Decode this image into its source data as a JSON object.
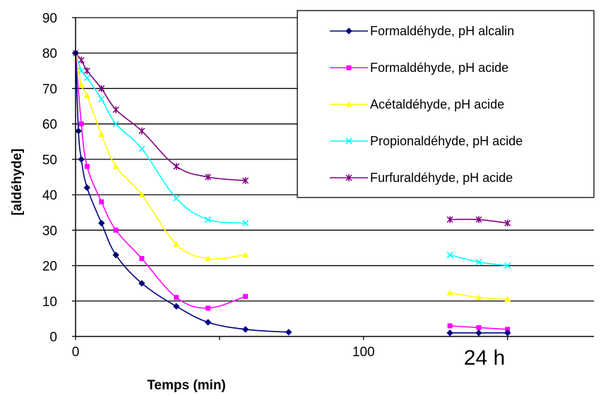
{
  "chart_data": {
    "type": "line",
    "xlabel": "Temps (min)",
    "ylabel": "[aldéhyde]",
    "annotation": "24 h",
    "xlim": [
      0,
      180
    ],
    "ylim": [
      0,
      90
    ],
    "x_ticks": [
      "0",
      "100"
    ],
    "y_ticks": [
      "0",
      "10",
      "20",
      "30",
      "40",
      "50",
      "60",
      "70",
      "80",
      "90"
    ],
    "gridlines": "horizontal",
    "legend_position": "top-right",
    "series": [
      {
        "name": "Formaldéhyde, pH alcalin",
        "color": "#000080",
        "marker": "diamond",
        "segments": [
          [
            [
              0,
              80
            ],
            [
              1,
              58
            ],
            [
              2,
              50
            ],
            [
              4,
              42
            ],
            [
              9,
              32
            ],
            [
              14,
              23
            ],
            [
              23,
              15
            ],
            [
              35,
              8.5
            ],
            [
              46,
              4
            ],
            [
              59,
              2
            ],
            [
              74,
              1.2
            ]
          ],
          [
            [
              130,
              1
            ],
            [
              140,
              1
            ],
            [
              150,
              1
            ]
          ]
        ]
      },
      {
        "name": "Formaldéhyde, pH acide",
        "color": "#ff00ff",
        "marker": "square",
        "segments": [
          [
            [
              0,
              80
            ],
            [
              2,
              60
            ],
            [
              4,
              48
            ],
            [
              9,
              38
            ],
            [
              14,
              30
            ],
            [
              23,
              22
            ],
            [
              35,
              11
            ],
            [
              46,
              8
            ],
            [
              59,
              11.3
            ]
          ],
          [
            [
              130,
              3
            ],
            [
              140,
              2.5
            ],
            [
              150,
              2
            ]
          ]
        ]
      },
      {
        "name": "Acétaldéhyde, pH acide",
        "color": "#ffff00",
        "marker": "triangle",
        "segments": [
          [
            [
              0,
              80
            ],
            [
              2,
              71
            ],
            [
              4,
              68
            ],
            [
              9,
              57
            ],
            [
              14,
              48
            ],
            [
              23,
              40
            ],
            [
              35,
              26
            ],
            [
              46,
              22
            ],
            [
              59,
              23
            ]
          ],
          [
            [
              130,
              12.3
            ],
            [
              140,
              11
            ],
            [
              150,
              10.5
            ]
          ]
        ]
      },
      {
        "name": "Propionaldéhyde, pH acide",
        "color": "#00ffff",
        "marker": "x",
        "segments": [
          [
            [
              0,
              80
            ],
            [
              2,
              75
            ],
            [
              4,
              73
            ],
            [
              9,
              67
            ],
            [
              14,
              60
            ],
            [
              23,
              53
            ],
            [
              35,
              39
            ],
            [
              46,
              33
            ],
            [
              59,
              32
            ]
          ],
          [
            [
              130,
              23
            ],
            [
              140,
              21
            ],
            [
              150,
              20
            ]
          ]
        ]
      },
      {
        "name": "Furfuraldéhyde, pH acide",
        "color": "#800080",
        "marker": "asterisk",
        "segments": [
          [
            [
              0,
              80
            ],
            [
              2,
              78
            ],
            [
              4,
              75
            ],
            [
              9,
              70
            ],
            [
              14,
              64
            ],
            [
              23,
              58
            ],
            [
              35,
              48
            ],
            [
              46,
              45
            ],
            [
              59,
              44
            ]
          ],
          [
            [
              130,
              33
            ],
            [
              140,
              33
            ],
            [
              150,
              32
            ]
          ]
        ]
      }
    ]
  }
}
